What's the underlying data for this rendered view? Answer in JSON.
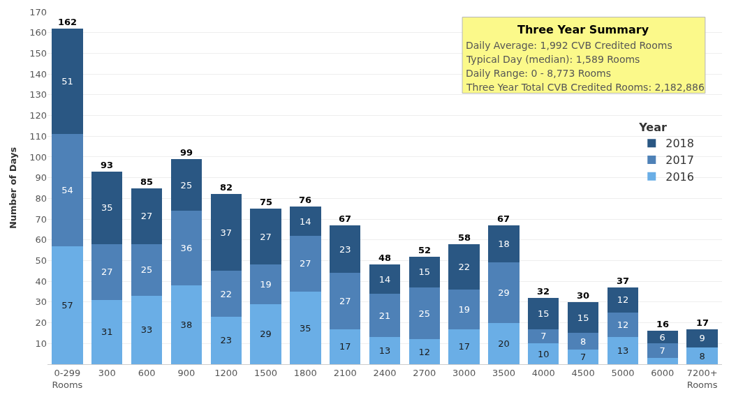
{
  "chart_data": {
    "type": "bar",
    "stacked": true,
    "ylabel": "Number of Days",
    "legend_title": "Year",
    "legend": "right",
    "categories": [
      "0-299 Rooms",
      "300",
      "600",
      "900",
      "1200",
      "1500",
      "1800",
      "2100",
      "2400",
      "2700",
      "3000",
      "3500",
      "4000",
      "4500",
      "5000",
      "6000",
      "7200+ Rooms"
    ],
    "series": [
      {
        "name": "2016",
        "color": "#6aaee6",
        "values": [
          57,
          31,
          33,
          38,
          23,
          29,
          35,
          17,
          13,
          12,
          17,
          20,
          10,
          7,
          13,
          3,
          8
        ],
        "value_labels": [
          "57",
          "31",
          "33",
          "38",
          "23",
          "29",
          "35",
          "17",
          "13",
          "12",
          "17",
          "20",
          "10",
          "7",
          "13",
          null,
          "8"
        ]
      },
      {
        "name": "2017",
        "color": "#4e81b7",
        "values": [
          54,
          27,
          25,
          36,
          22,
          19,
          27,
          27,
          21,
          25,
          19,
          29,
          7,
          8,
          12,
          7,
          0
        ],
        "value_labels": [
          "54",
          "27",
          "25",
          "36",
          "22",
          "19",
          "27",
          "27",
          "21",
          "25",
          "19",
          "29",
          "7",
          "8",
          "12",
          "7",
          null
        ]
      },
      {
        "name": "2018",
        "color": "#2a5783",
        "values": [
          51,
          35,
          27,
          25,
          37,
          27,
          14,
          23,
          14,
          15,
          22,
          18,
          15,
          15,
          12,
          6,
          9
        ],
        "value_labels": [
          "51",
          "35",
          "27",
          "25",
          "37",
          "27",
          "14",
          "23",
          "14",
          "15",
          "22",
          "18",
          "15",
          "15",
          "12",
          "6",
          "9"
        ]
      }
    ],
    "totals": [
      "162",
      "93",
      "85",
      "99",
      "82",
      "75",
      "76",
      "67",
      "48",
      "52",
      "58",
      "67",
      "32",
      "30",
      "37",
      "16",
      "17"
    ],
    "ylim": [
      0,
      170
    ],
    "yticks": [
      10,
      20,
      30,
      40,
      50,
      60,
      70,
      80,
      90,
      100,
      110,
      120,
      130,
      140,
      150,
      160,
      170
    ],
    "grid": "y",
    "annotations": [
      "Three Year Summary",
      "Daily Average: 1,992 CVB Credited Rooms",
      "Typical Day (median): 1,589 Rooms",
      "Daily Range: 0 - 8,773 Rooms",
      "Three Year Total CVB Credited Rooms: 2,182,886"
    ]
  }
}
